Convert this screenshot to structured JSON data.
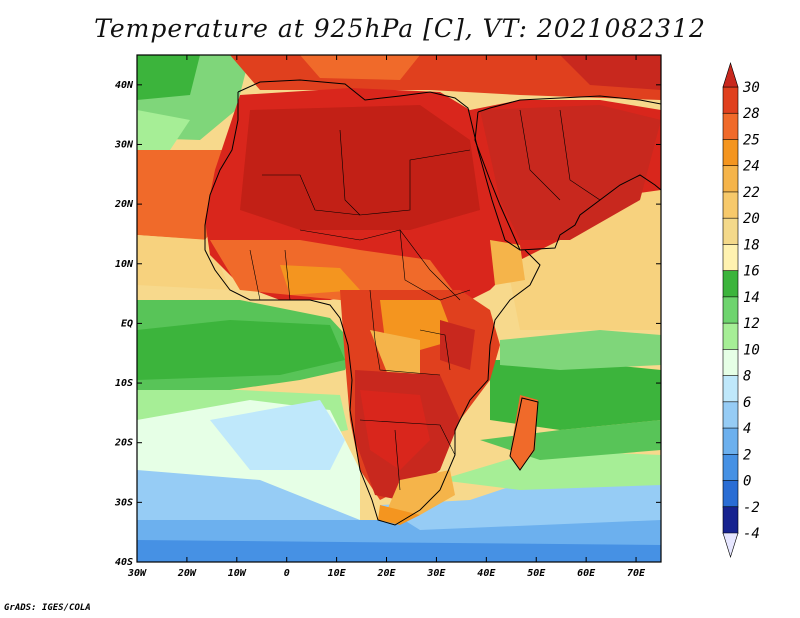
{
  "title": "Temperature at 925hPa [C], VT: 2021082312",
  "credit": "GrADS: IGES/COLA",
  "map": {
    "projection": "latlon",
    "lon_range": [
      -30,
      75
    ],
    "lat_range": [
      -40,
      45
    ],
    "x_ticks": [
      "30W",
      "20W",
      "10W",
      "0",
      "10E",
      "20E",
      "30E",
      "40E",
      "50E",
      "60E",
      "70E"
    ],
    "y_ticks": [
      "40N",
      "30N",
      "20N",
      "10N",
      "EQ",
      "10S",
      "20S",
      "30S",
      "40S"
    ],
    "features": [
      "coastlines",
      "country borders"
    ]
  },
  "colorbar": {
    "levels": [
      "30",
      "28",
      "25",
      "24",
      "22",
      "20",
      "18",
      "16",
      "14",
      "12",
      "10",
      "8",
      "6",
      "4",
      "2",
      "0",
      "-2",
      "-4"
    ],
    "colors": [
      "#c8281e",
      "#e0401e",
      "#f06a2a",
      "#f4951f",
      "#f5b44a",
      "#f4d98a",
      "#fff2b0",
      "#3cb43c",
      "#6ed46e",
      "#a6ee96",
      "#e6ffe6",
      "#bfe8fb",
      "#96ccf5",
      "#6cb0ee",
      "#4691e4",
      "#2a6dd4",
      "#1e46b4",
      "#17238f",
      "#101060",
      "#e6e6ff"
    ],
    "colors_note": "bottom pale lavender triangle, top dark red triangle"
  },
  "colors": {
    "hot": "#d9261c",
    "warm": "#f26d21",
    "mild": "#f7d27e",
    "green": "#58c458",
    "light_blue": "#a9d8f5",
    "blue": "#4f8fe0",
    "border": "#000000"
  }
}
